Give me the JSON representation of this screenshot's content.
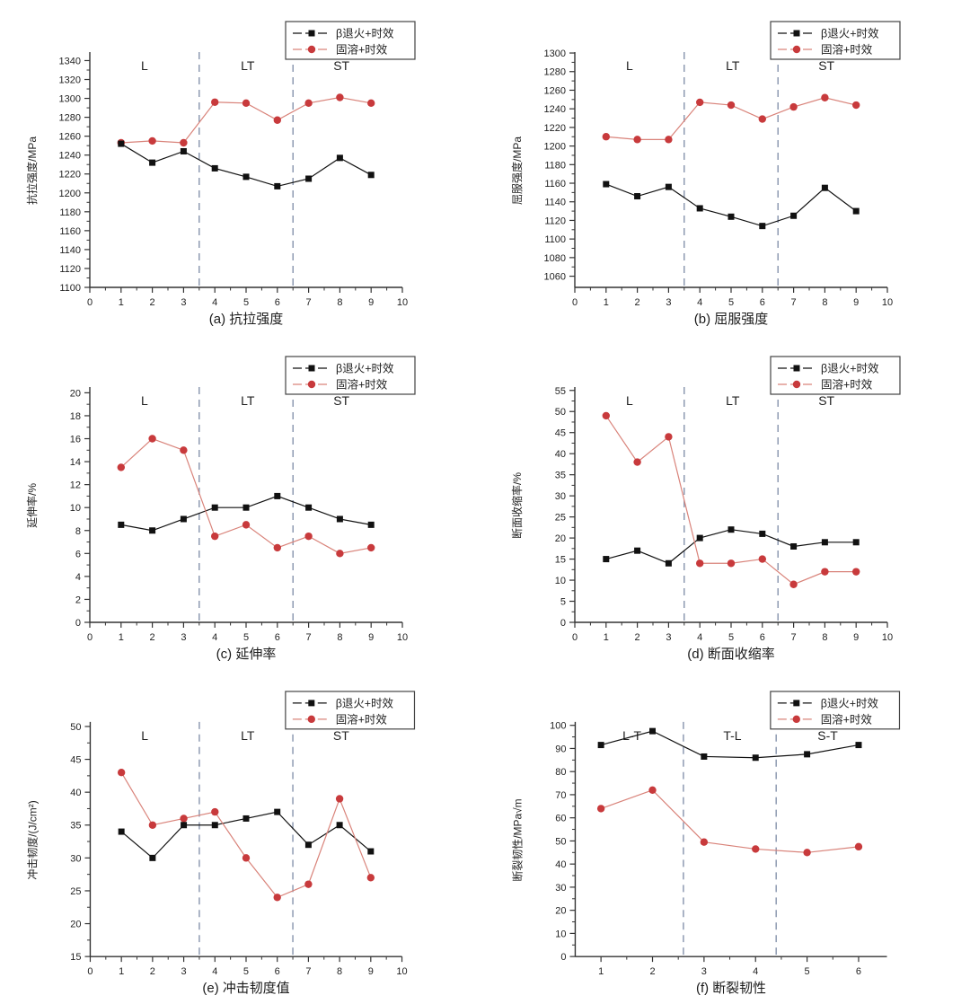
{
  "page": {
    "background": "#ffffff"
  },
  "colors": {
    "series1": "#111111",
    "series2_line": "#d9837a",
    "series2_marker": "#c83a3c",
    "divider": "#7d8ba6",
    "axis": "#333333",
    "legend_border": "#444444"
  },
  "legend": {
    "series1_label": "β退火+时效",
    "series2_label": "固溶+时效"
  },
  "chart_data": [
    {
      "type": "line",
      "caption": "(a) 抗拉强度",
      "ylabel": "抗拉强度/MPa",
      "ylim": [
        1100,
        1349
      ],
      "yticks": [
        1100,
        1120,
        1140,
        1160,
        1180,
        1200,
        1220,
        1240,
        1260,
        1280,
        1300,
        1320,
        1340
      ],
      "xlim": [
        0,
        10
      ],
      "xticks": [
        0,
        1,
        2,
        3,
        4,
        5,
        6,
        7,
        8,
        9,
        10
      ],
      "x": [
        1,
        2,
        3,
        4,
        5,
        6,
        7,
        8,
        9
      ],
      "series": [
        {
          "name": "β退火+时效",
          "values": [
            1252,
            1232,
            1244,
            1226,
            1217,
            1207,
            1215,
            1237,
            1219
          ]
        },
        {
          "name": "固溶+时效",
          "values": [
            1253,
            1255,
            1253,
            1296,
            1295,
            1277,
            1295,
            1301,
            1295
          ]
        }
      ],
      "dividers": [
        3.5,
        6.5
      ],
      "regions": [
        {
          "label": "L",
          "x": 1.75
        },
        {
          "label": "LT",
          "x": 5.05
        },
        {
          "label": "ST",
          "x": 8.05
        }
      ]
    },
    {
      "type": "line",
      "caption": "(b) 屈服强度",
      "ylabel": "屈服强度/MPa",
      "ylim": [
        1048,
        1301
      ],
      "yticks": [
        1060,
        1080,
        1100,
        1120,
        1140,
        1160,
        1180,
        1200,
        1220,
        1240,
        1260,
        1280,
        1300
      ],
      "xlim": [
        0,
        10
      ],
      "xticks": [
        0,
        1,
        2,
        3,
        4,
        5,
        6,
        7,
        8,
        9,
        10
      ],
      "x": [
        1,
        2,
        3,
        4,
        5,
        6,
        7,
        8,
        9
      ],
      "series": [
        {
          "name": "β退火+时效",
          "values": [
            1159,
            1146,
            1156,
            1133,
            1124,
            1114,
            1125,
            1155,
            1130
          ]
        },
        {
          "name": "固溶+时效",
          "values": [
            1210,
            1207,
            1207,
            1247,
            1244,
            1229,
            1242,
            1252,
            1244
          ]
        }
      ],
      "dividers": [
        3.5,
        6.5
      ],
      "regions": [
        {
          "label": "L",
          "x": 1.75
        },
        {
          "label": "LT",
          "x": 5.05
        },
        {
          "label": "ST",
          "x": 8.05
        }
      ]
    },
    {
      "type": "line",
      "caption": "(c) 延伸率",
      "ylabel": "延伸率/%",
      "ylim": [
        0,
        20.5
      ],
      "yticks": [
        0,
        2,
        4,
        6,
        8,
        10,
        12,
        14,
        16,
        18,
        20
      ],
      "xlim": [
        0,
        10
      ],
      "xticks": [
        0,
        1,
        2,
        3,
        4,
        5,
        6,
        7,
        8,
        9,
        10
      ],
      "x": [
        1,
        2,
        3,
        4,
        5,
        6,
        7,
        8,
        9
      ],
      "series": [
        {
          "name": "β退火+时效",
          "values": [
            8.5,
            8,
            9,
            10,
            10,
            11,
            10,
            9,
            8.5
          ]
        },
        {
          "name": "固溶+时效",
          "values": [
            13.5,
            16,
            15,
            7.5,
            8.5,
            6.5,
            7.5,
            6,
            6.5
          ]
        }
      ],
      "dividers": [
        3.5,
        6.5
      ],
      "regions": [
        {
          "label": "L",
          "x": 1.75
        },
        {
          "label": "LT",
          "x": 5.05
        },
        {
          "label": "ST",
          "x": 8.05
        }
      ]
    },
    {
      "type": "line",
      "caption": "(d) 断面收缩率",
      "ylabel": "断面收缩率/%",
      "ylim": [
        0,
        55.8
      ],
      "yticks": [
        0,
        5,
        10,
        15,
        20,
        25,
        30,
        35,
        40,
        45,
        50,
        55
      ],
      "xlim": [
        0,
        10
      ],
      "xticks": [
        0,
        1,
        2,
        3,
        4,
        5,
        6,
        7,
        8,
        9,
        10
      ],
      "x": [
        1,
        2,
        3,
        4,
        5,
        6,
        7,
        8,
        9
      ],
      "series": [
        {
          "name": "β退火+时效",
          "values": [
            15,
            17,
            14,
            20,
            22,
            21,
            18,
            19,
            19
          ]
        },
        {
          "name": "固溶+时效",
          "values": [
            49,
            38,
            44,
            14,
            14,
            15,
            9,
            12,
            12
          ]
        }
      ],
      "dividers": [
        3.5,
        6.5
      ],
      "regions": [
        {
          "label": "L",
          "x": 1.75
        },
        {
          "label": "LT",
          "x": 5.05
        },
        {
          "label": "ST",
          "x": 8.05
        }
      ]
    },
    {
      "type": "line",
      "caption": "(e) 冲击韧度值",
      "ylabel": "冲击韧度/(J/cm²)",
      "ylim": [
        15,
        50.7
      ],
      "yticks": [
        15,
        20,
        25,
        30,
        35,
        40,
        45,
        50
      ],
      "xlim": [
        0,
        10
      ],
      "xticks": [
        0,
        1,
        2,
        3,
        4,
        5,
        6,
        7,
        8,
        9,
        10
      ],
      "x": [
        1,
        2,
        3,
        4,
        5,
        6,
        7,
        8,
        9
      ],
      "series": [
        {
          "name": "β退火+时效",
          "values": [
            34,
            30,
            35,
            35,
            36,
            37,
            32,
            35,
            31
          ]
        },
        {
          "name": "固溶+时效",
          "values": [
            43,
            35,
            36,
            37,
            30,
            24,
            26,
            39,
            27
          ]
        }
      ],
      "dividers": [
        3.5,
        6.5
      ],
      "regions": [
        {
          "label": "L",
          "x": 1.75
        },
        {
          "label": "LT",
          "x": 5.05
        },
        {
          "label": "ST",
          "x": 8.05
        }
      ]
    },
    {
      "type": "line",
      "caption": "(f) 断裂韧性",
      "ylabel": "断裂韧性/MPa√m",
      "ylim": [
        0,
        101.5
      ],
      "yticks": [
        0,
        10,
        20,
        30,
        40,
        50,
        60,
        70,
        80,
        90,
        100
      ],
      "xlim": [
        0.5,
        6.55
      ],
      "xticks": [
        1,
        2,
        3,
        4,
        5,
        6
      ],
      "x": [
        1,
        2,
        3,
        4,
        5,
        6
      ],
      "series": [
        {
          "name": "β退火+时效",
          "values": [
            91.5,
            97.5,
            86.5,
            86,
            87.5,
            91.5
          ]
        },
        {
          "name": "固溶+时效",
          "values": [
            64,
            72,
            49.5,
            46.5,
            45,
            47.5
          ]
        }
      ],
      "dividers": [
        2.6,
        4.4
      ],
      "regions": [
        {
          "label": "L-T",
          "x": 1.6
        },
        {
          "label": "T-L",
          "x": 3.55
        },
        {
          "label": "S-T",
          "x": 5.4
        }
      ]
    }
  ]
}
